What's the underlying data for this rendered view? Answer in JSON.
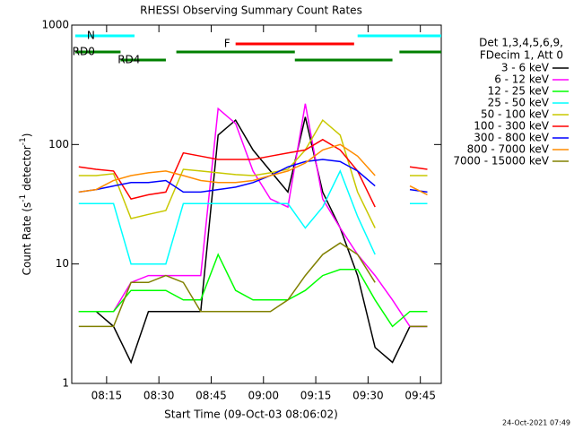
{
  "chart_data": {
    "type": "line",
    "title": "RHESSI Observing Summary Count Rates",
    "x_label": "Start Time (09-Oct-03 08:06:02)",
    "y_label": {
      "main": "Count Rate (s",
      "sup1": "-1",
      "mid": " detector",
      "sup2": "-1",
      "end": ")"
    },
    "legend_header": [
      "Det 1,3,4,5,6,9,",
      "FDecim 1, Att 0"
    ],
    "timestamp": "24-Oct-2021 07:49",
    "log_y": true,
    "xlim": [
      "08:05",
      "09:51"
    ],
    "xticks": [
      "08:15",
      "08:30",
      "08:45",
      "09:00",
      "09:15",
      "09:30",
      "09:45"
    ],
    "ylim": [
      1,
      1000
    ],
    "yticks": [
      1,
      10,
      100,
      1000
    ],
    "x": [
      "08:07",
      "08:12",
      "08:17",
      "08:22",
      "08:27",
      "08:32",
      "08:37",
      "08:42",
      "08:47",
      "08:52",
      "08:57",
      "09:02",
      "09:07",
      "09:12",
      "09:17",
      "09:22",
      "09:27",
      "09:32",
      "09:37",
      "09:42",
      "09:47"
    ],
    "series": [
      {
        "name": "3 - 6 keV",
        "color": "#000000",
        "values": [
          4,
          4,
          3,
          1.5,
          4,
          4,
          4,
          4,
          120,
          160,
          90,
          60,
          40,
          170,
          40,
          20,
          8,
          2,
          1.5,
          3,
          3
        ]
      },
      {
        "name": "6 - 12 keV",
        "color": "#ff00ff",
        "values": [
          4,
          4,
          4,
          7,
          8,
          8,
          8,
          8,
          200,
          150,
          60,
          35,
          30,
          220,
          35,
          20,
          12,
          8,
          5,
          3,
          3
        ]
      },
      {
        "name": "12 - 25 keV",
        "color": "#00ff00",
        "values": [
          4,
          4,
          4,
          6,
          6,
          6,
          5,
          5,
          12,
          6,
          5,
          5,
          5,
          6,
          8,
          9,
          9,
          5,
          3,
          4,
          4
        ]
      },
      {
        "name": "25 - 50 keV",
        "color": "#00ffff",
        "values": [
          32,
          32,
          32,
          10,
          10,
          10,
          32,
          32,
          32,
          32,
          32,
          32,
          32,
          20,
          30,
          60,
          25,
          12,
          null,
          32,
          32
        ]
      },
      {
        "name": "50 - 100 keV",
        "color": "#c8c800",
        "values": [
          55,
          55,
          57,
          24,
          26,
          28,
          62,
          60,
          58,
          56,
          55,
          58,
          62,
          90,
          160,
          120,
          40,
          20,
          null,
          55,
          55
        ]
      },
      {
        "name": "100 - 300 keV",
        "color": "#ff0000",
        "values": [
          65,
          62,
          60,
          35,
          38,
          40,
          85,
          80,
          75,
          75,
          75,
          80,
          85,
          90,
          110,
          90,
          60,
          30,
          null,
          65,
          62
        ]
      },
      {
        "name": "300 - 800 keV",
        "color": "#0000ff",
        "values": [
          40,
          42,
          45,
          48,
          48,
          50,
          40,
          40,
          42,
          44,
          48,
          55,
          65,
          72,
          75,
          72,
          60,
          45,
          null,
          42,
          40
        ]
      },
      {
        "name": "800 - 7000 keV",
        "color": "#ff8c00",
        "values": [
          40,
          42,
          50,
          55,
          58,
          60,
          55,
          50,
          48,
          48,
          50,
          55,
          60,
          70,
          90,
          100,
          80,
          55,
          null,
          45,
          38
        ]
      },
      {
        "name": "7000 - 15000 keV",
        "color": "#808000",
        "values": [
          3,
          3,
          3,
          7,
          7,
          8,
          7,
          4,
          4,
          4,
          4,
          4,
          5,
          8,
          12,
          15,
          12,
          7,
          null,
          3,
          3
        ]
      }
    ],
    "flags": [
      {
        "label": "N",
        "color": "#00ffff",
        "spans": [
          [
            "08:06",
            "08:23"
          ],
          [
            "09:27",
            "09:51"
          ]
        ]
      },
      {
        "label": "F",
        "color": "#ff0000",
        "spans": [
          [
            "08:52",
            "09:26"
          ]
        ]
      },
      {
        "label": "RD0",
        "color": "#008000",
        "spans": [
          [
            "08:06",
            "08:19"
          ],
          [
            "08:35",
            "09:09"
          ],
          [
            "09:39",
            "09:51"
          ]
        ]
      },
      {
        "label": "RD4",
        "color": "#008000",
        "spans": [
          [
            "08:19",
            "08:32"
          ],
          [
            "09:09",
            "09:37"
          ]
        ]
      }
    ]
  }
}
